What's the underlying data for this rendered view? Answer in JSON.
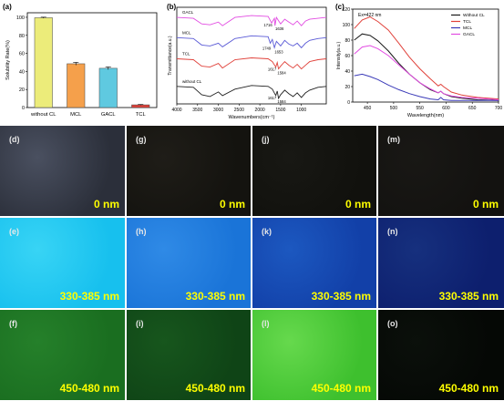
{
  "chart_data": [
    {
      "panel": "(a)",
      "type": "bar",
      "ylabel": "Solubility Rate(%)",
      "xlabel": "",
      "ylim": [
        0,
        105
      ],
      "yticks": [
        0,
        20,
        40,
        60,
        80,
        100
      ],
      "categories": [
        "without CL",
        "MCL",
        "GACL",
        "TCL"
      ],
      "values": [
        99.5,
        48.5,
        43.5,
        3.0
      ],
      "errors": [
        0.6,
        1.6,
        1.5,
        0.4
      ],
      "colors": [
        "#ecec7a",
        "#f5a04b",
        "#5fc9e0",
        "#e0413a"
      ]
    },
    {
      "panel": "(b)",
      "type": "line",
      "xlabel": "Wavenumbers(cm⁻¹)",
      "ylabel": "Transmittance(a.u.)",
      "xlim": [
        4000,
        400
      ],
      "xticks": [
        4000,
        3500,
        3000,
        2500,
        2000,
        1500,
        1000
      ],
      "series": [
        {
          "name": "GACL",
          "color": "#e24ce2",
          "x": [
            4000,
            3600,
            3400,
            3200,
            3000,
            2900,
            2600,
            2200,
            1800,
            1716,
            1650,
            1636,
            1600,
            1500,
            1400,
            1300,
            1200,
            1100,
            1000,
            900,
            800,
            600,
            400
          ],
          "y": [
            9.4,
            9.3,
            8.7,
            8.6,
            8.9,
            8.5,
            9.4,
            9.6,
            9.5,
            8.8,
            9.3,
            8.5,
            9.4,
            8.7,
            9.2,
            8.9,
            8.6,
            9.0,
            8.5,
            9.0,
            9.2,
            9.3,
            9.4
          ]
        },
        {
          "name": "MCL",
          "color": "#5a5ad6",
          "x": [
            4000,
            3600,
            3400,
            3200,
            3000,
            2900,
            2600,
            2200,
            1800,
            1749,
            1700,
            1650,
            1600,
            1500,
            1400,
            1300,
            1200,
            1100,
            1000,
            900,
            800,
            600,
            400
          ],
          "y": [
            7.2,
            7.1,
            6.4,
            6.3,
            6.6,
            6.2,
            7.1,
            7.4,
            7.3,
            6.6,
            7.0,
            6.1,
            6.8,
            6.3,
            6.9,
            6.5,
            6.3,
            6.6,
            6.1,
            6.6,
            6.9,
            7.1,
            7.2
          ]
        },
        {
          "name": "TCL",
          "color": "#e0413a",
          "x": [
            4000,
            3600,
            3400,
            3200,
            3000,
            2900,
            2600,
            2200,
            1800,
            1700,
            1617,
            1580,
            1550,
            1500,
            1400,
            1300,
            1200,
            1100,
            1000,
            900,
            800,
            600,
            400
          ],
          "y": [
            4.9,
            4.8,
            4.1,
            4.0,
            4.4,
            3.9,
            4.8,
            5.0,
            4.9,
            4.6,
            4.0,
            4.5,
            3.8,
            4.1,
            4.6,
            4.2,
            3.9,
            4.3,
            3.8,
            4.2,
            4.6,
            4.8,
            4.9
          ]
        },
        {
          "name": "without CL",
          "color": "#222222",
          "x": [
            4000,
            3600,
            3400,
            3200,
            3000,
            2900,
            2600,
            2200,
            1800,
            1700,
            1617,
            1580,
            1550,
            1500,
            1400,
            1300,
            1200,
            1100,
            1000,
            900,
            800,
            600,
            400
          ],
          "y": [
            1.9,
            1.8,
            1.0,
            0.8,
            1.3,
            0.9,
            1.6,
            2.0,
            1.9,
            1.6,
            0.9,
            1.4,
            0.6,
            1.0,
            1.5,
            1.1,
            0.8,
            1.2,
            0.7,
            1.2,
            1.5,
            1.8,
            1.9
          ]
        }
      ],
      "annotations": {
        "gacl_1": "1716",
        "gacl_2": "1636",
        "mcl_1": "1749",
        "mcl_2": "1653",
        "tcl_1": "1617",
        "tcl_2": "1584",
        "wocl_1": "1617",
        "wocl_2": "1584"
      }
    },
    {
      "panel": "(c)",
      "type": "line",
      "xlabel": "Wavelength(nm)",
      "ylabel": "Intensity(a.u.)",
      "annotation": "Ex=422 nm",
      "xlim": [
        422,
        700
      ],
      "ylim": [
        0,
        120
      ],
      "xticks": [
        450,
        500,
        550,
        600,
        650,
        700
      ],
      "yticks": [
        0,
        20,
        40,
        60,
        80,
        100,
        120
      ],
      "series": [
        {
          "name": "Without CL",
          "color": "#1a1a1a",
          "x": [
            425,
            440,
            455,
            470,
            490,
            510,
            530,
            550,
            570,
            585,
            590,
            595,
            610,
            630,
            660,
            700
          ],
          "y": [
            80,
            88,
            86,
            79,
            66,
            50,
            36,
            25,
            16,
            12,
            14,
            11,
            7,
            5,
            3,
            2
          ]
        },
        {
          "name": "TCL",
          "color": "#e0413a",
          "x": [
            425,
            440,
            455,
            470,
            490,
            510,
            530,
            550,
            570,
            585,
            590,
            595,
            610,
            630,
            660,
            700
          ],
          "y": [
            95,
            106,
            110,
            104,
            93,
            76,
            58,
            43,
            30,
            21,
            23,
            20,
            13,
            9,
            6,
            4
          ]
        },
        {
          "name": "MCL",
          "color": "#3a3ab8",
          "x": [
            425,
            440,
            455,
            470,
            490,
            510,
            530,
            550,
            570,
            585,
            590,
            595,
            610,
            630,
            660,
            700
          ],
          "y": [
            34,
            36,
            33,
            29,
            22,
            16,
            11,
            7,
            4,
            3,
            6,
            3,
            2,
            2,
            2,
            2
          ]
        },
        {
          "name": "GACL",
          "color": "#e24ce2",
          "x": [
            425,
            440,
            455,
            470,
            490,
            510,
            530,
            550,
            570,
            585,
            590,
            595,
            610,
            630,
            660,
            700
          ],
          "y": [
            62,
            71,
            73,
            69,
            60,
            48,
            36,
            25,
            17,
            12,
            14,
            11,
            8,
            6,
            5,
            3
          ]
        }
      ]
    }
  ],
  "grid": {
    "rows": [
      {
        "label": "0 nm",
        "tiles": [
          {
            "letter": "(d)",
            "color": "#2b2f3a",
            "glow": "#4a5060"
          },
          {
            "letter": "(g)",
            "color": "#14130f",
            "glow": "#1f1d18"
          },
          {
            "letter": "(j)",
            "color": "#11110d",
            "glow": "#181814"
          },
          {
            "letter": "(m)",
            "color": "#131210",
            "glow": "#191815"
          }
        ]
      },
      {
        "label": "330-385 nm",
        "tiles": [
          {
            "letter": "(e)",
            "color": "#17c0ee",
            "glow": "#38d4f5"
          },
          {
            "letter": "(h)",
            "color": "#1a74d8",
            "glow": "#2f8ae6"
          },
          {
            "letter": "(k)",
            "color": "#1240a8",
            "glow": "#1c58c0"
          },
          {
            "letter": "(n)",
            "color": "#0d1f6e",
            "glow": "#16307e"
          }
        ]
      },
      {
        "label": "450-480 nm",
        "tiles": [
          {
            "letter": "(f)",
            "color": "#1a6e20",
            "glow": "#25802a"
          },
          {
            "letter": "(i)",
            "color": "#0f4416",
            "glow": "#17561d"
          },
          {
            "letter": "(l)",
            "color": "#3ec02e",
            "glow": "#66d94d"
          },
          {
            "letter": "(o)",
            "color": "#050805",
            "glow": "#0b100b"
          }
        ]
      }
    ]
  }
}
